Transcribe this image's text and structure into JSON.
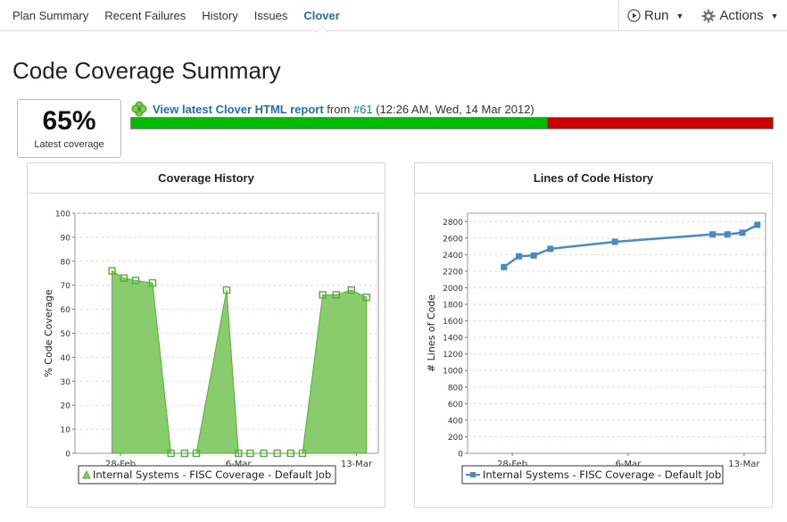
{
  "nav": {
    "tabs": [
      "Plan Summary",
      "Recent Failures",
      "History",
      "Issues",
      "Clover"
    ],
    "active_tab": 4,
    "run_label": "Run",
    "actions_label": "Actions"
  },
  "page_title": "Code Coverage Summary",
  "coverage": {
    "percent": "65%",
    "label": "Latest coverage",
    "fraction": 0.65
  },
  "report": {
    "link_text": "View latest Clover HTML report",
    "from_text": " from ",
    "build_text": "#61",
    "time_text": " (12:26 AM, Wed, 14 Mar 2012)"
  },
  "colors": {
    "link": "#2b6ea3",
    "covered": "#00bb00",
    "uncovered": "#cc0000",
    "area_fill": "#88cc6e",
    "area_stroke": "#5aab3c",
    "line": "#4a8ac4"
  },
  "charts": [
    {
      "title": "Coverage History",
      "chart_data": {
        "type": "area",
        "ylabel": "% Code Coverage",
        "xlabel": "",
        "ylim": [
          0,
          100
        ],
        "yticks": [
          0,
          10,
          20,
          30,
          40,
          50,
          60,
          70,
          80,
          90,
          100
        ],
        "xticks": [
          {
            "label": "28-Feb",
            "day": 28
          },
          {
            "label": "6-Mar",
            "day": 35
          },
          {
            "label": "13-Mar",
            "day": 42
          }
        ],
        "xlim": [
          25.3,
          43.3
        ],
        "grid": true,
        "legend": "bottom",
        "series": [
          {
            "name": "Internal Systems - FISC Coverage - Default Job",
            "points": [
              {
                "x": "27-Feb",
                "day": 27.5,
                "y": 76
              },
              {
                "x": "28-Feb",
                "day": 28.2,
                "y": 73
              },
              {
                "x": "29-Feb",
                "day": 28.9,
                "y": 72
              },
              {
                "x": "1-Mar",
                "day": 29.9,
                "y": 71
              },
              {
                "x": "2-Mar",
                "day": 31.0,
                "y": 0
              },
              {
                "x": "3-Mar",
                "day": 31.8,
                "y": 0
              },
              {
                "x": "4-Mar",
                "day": 32.5,
                "y": 0
              },
              {
                "x": "5-Mar",
                "day": 34.3,
                "y": 68
              },
              {
                "x": "6-Mar",
                "day": 35.0,
                "y": 0
              },
              {
                "x": "6-Mar",
                "day": 35.7,
                "y": 0
              },
              {
                "x": "7-Mar",
                "day": 36.5,
                "y": 0
              },
              {
                "x": "8-Mar",
                "day": 37.3,
                "y": 0
              },
              {
                "x": "9-Mar",
                "day": 38.1,
                "y": 0
              },
              {
                "x": "10-Mar",
                "day": 38.8,
                "y": 0
              },
              {
                "x": "11-Mar",
                "day": 40.0,
                "y": 66
              },
              {
                "x": "12-Mar",
                "day": 40.8,
                "y": 66
              },
              {
                "x": "13-Mar",
                "day": 41.7,
                "y": 68
              },
              {
                "x": "14-Mar",
                "day": 42.6,
                "y": 65
              }
            ]
          }
        ]
      }
    },
    {
      "title": "Lines of Code History",
      "chart_data": {
        "type": "line",
        "ylabel": "# Lines of Code",
        "xlabel": "",
        "ylim": [
          0,
          2900
        ],
        "yticks": [
          0,
          200,
          400,
          600,
          800,
          1000,
          1200,
          1400,
          1600,
          1800,
          2000,
          2200,
          2400,
          2600,
          2800
        ],
        "xticks": [
          {
            "label": "28-Feb",
            "day": 28
          },
          {
            "label": "6-Mar",
            "day": 35
          },
          {
            "label": "13-Mar",
            "day": 42
          }
        ],
        "xlim": [
          25.3,
          43.3
        ],
        "grid": true,
        "legend": "bottom",
        "series": [
          {
            "name": "Internal Systems - FISC Coverage - Default Job",
            "points": [
              {
                "x": "27-Feb",
                "day": 27.5,
                "y": 2250
              },
              {
                "x": "28-Feb",
                "day": 28.4,
                "y": 2380
              },
              {
                "x": "29-Feb",
                "day": 29.3,
                "y": 2390
              },
              {
                "x": "1-Mar",
                "day": 30.3,
                "y": 2470
              },
              {
                "x": "5-Mar",
                "day": 34.2,
                "y": 2555
              },
              {
                "x": "11-Mar",
                "day": 40.1,
                "y": 2645
              },
              {
                "x": "12-Mar",
                "day": 41.0,
                "y": 2645
              },
              {
                "x": "13-Mar",
                "day": 41.9,
                "y": 2665
              },
              {
                "x": "14-Mar",
                "day": 42.8,
                "y": 2760
              }
            ]
          }
        ]
      }
    }
  ]
}
